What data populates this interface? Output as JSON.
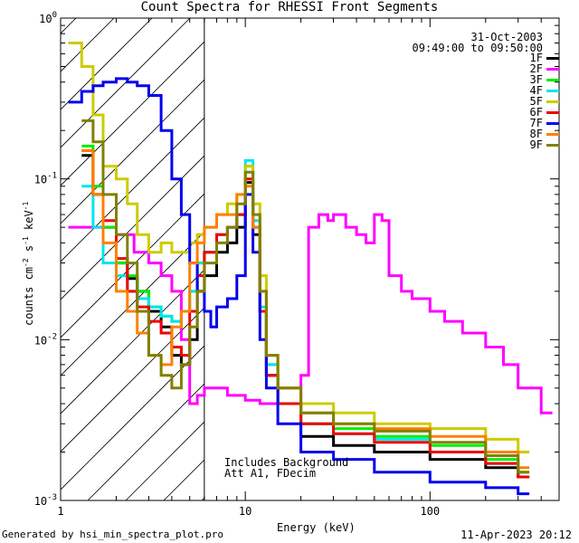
{
  "chart_data": {
    "type": "line",
    "title": "Count Spectra for RHESSI Front Segments",
    "date": "31-Oct-2003",
    "time_range": "09:49:00 to 09:50:00",
    "xlabel": "Energy (keV)",
    "ylabel_parts": {
      "base": "counts cm",
      "exp1": "-2",
      "mid": " s",
      "exp2": "-1",
      "end": " keV",
      "exp3": "-1"
    },
    "xscale": "log",
    "yscale": "log",
    "xlim": [
      1,
      500
    ],
    "ylim": [
      0.001,
      1
    ],
    "x_ticks": [
      {
        "value": 1,
        "label": "1"
      },
      {
        "value": 10,
        "label": "10"
      },
      {
        "value": 100,
        "label": "100"
      }
    ],
    "y_ticks": [
      {
        "value": 0.001,
        "label_base": "10",
        "label_exp": "-3"
      },
      {
        "value": 0.01,
        "label_base": "10",
        "label_exp": "-2"
      },
      {
        "value": 0.1,
        "label_base": "10",
        "label_exp": "-1"
      },
      {
        "value": 1,
        "label_base": "10",
        "label_exp": "0"
      }
    ],
    "hatched_region_max_energy": 6,
    "annotations": [
      "Includes Background",
      "Att A1, FDecim"
    ],
    "legend_position": "top-right",
    "series": [
      {
        "name": "1F",
        "color": "#000000",
        "x": [
          1.3,
          1.5,
          1.7,
          2,
          2.3,
          2.6,
          3,
          3.5,
          4,
          4.5,
          5,
          5.5,
          6,
          7,
          8,
          9,
          10,
          11,
          12,
          13,
          15,
          20,
          30,
          50,
          100,
          200,
          300
        ],
        "y": [
          0.14,
          0.08,
          0.05,
          0.03,
          0.024,
          0.02,
          0.015,
          0.012,
          0.008,
          0.007,
          0.01,
          0.02,
          0.025,
          0.035,
          0.04,
          0.05,
          0.095,
          0.045,
          0.015,
          0.006,
          0.004,
          0.0025,
          0.0022,
          0.002,
          0.0018,
          0.0016,
          0.0014
        ]
      },
      {
        "name": "2F",
        "color": "#ff00ff",
        "x": [
          1.1,
          1.5,
          2,
          2.5,
          3,
          3.5,
          4,
          4.5,
          5,
          5.5,
          6,
          7,
          8,
          9,
          10,
          12,
          15,
          18,
          20,
          22,
          25,
          28,
          30,
          35,
          40,
          45,
          50,
          55,
          60,
          70,
          80,
          100,
          120,
          150,
          200,
          250,
          300,
          400
        ],
        "y": [
          0.05,
          0.05,
          0.045,
          0.035,
          0.03,
          0.025,
          0.02,
          0.01,
          0.004,
          0.0045,
          0.005,
          0.005,
          0.0045,
          0.0045,
          0.0042,
          0.004,
          0.004,
          0.004,
          0.006,
          0.05,
          0.06,
          0.055,
          0.06,
          0.05,
          0.045,
          0.04,
          0.06,
          0.055,
          0.025,
          0.02,
          0.018,
          0.015,
          0.013,
          0.011,
          0.009,
          0.007,
          0.005,
          0.0035
        ]
      },
      {
        "name": "3F",
        "color": "#00ee00",
        "x": [
          1.3,
          1.5,
          1.7,
          2,
          2.3,
          2.6,
          3,
          3.5,
          4,
          4.5,
          5,
          5.5,
          6,
          7,
          8,
          9,
          10,
          11,
          12,
          13,
          15,
          20,
          30,
          50,
          100,
          200,
          300
        ],
        "y": [
          0.16,
          0.09,
          0.05,
          0.03,
          0.025,
          0.02,
          0.016,
          0.014,
          0.013,
          0.015,
          0.02,
          0.03,
          0.035,
          0.045,
          0.05,
          0.06,
          0.12,
          0.05,
          0.015,
          0.007,
          0.004,
          0.003,
          0.0028,
          0.0025,
          0.0022,
          0.0018,
          0.0015
        ]
      },
      {
        "name": "4F",
        "color": "#00e5ee",
        "x": [
          1.3,
          1.5,
          1.7,
          2,
          2.3,
          2.6,
          3,
          3.5,
          4,
          4.5,
          5,
          5.5,
          6,
          7,
          8,
          9,
          10,
          11,
          12,
          13,
          15,
          20,
          30,
          50,
          100,
          200,
          300
        ],
        "y": [
          0.09,
          0.05,
          0.03,
          0.025,
          0.02,
          0.018,
          0.016,
          0.014,
          0.013,
          0.015,
          0.02,
          0.03,
          0.035,
          0.045,
          0.05,
          0.06,
          0.13,
          0.055,
          0.016,
          0.007,
          0.004,
          0.003,
          0.0026,
          0.0024,
          0.002,
          0.0017,
          0.0014
        ]
      },
      {
        "name": "5F",
        "color": "#cccc00",
        "x": [
          1.1,
          1.3,
          1.5,
          1.7,
          2,
          2.3,
          2.6,
          3,
          3.5,
          4,
          4.5,
          5,
          5.5,
          6,
          7,
          8,
          9,
          10,
          11,
          12,
          13,
          15,
          20,
          30,
          50,
          100,
          200,
          300
        ],
        "y": [
          0.7,
          0.5,
          0.25,
          0.12,
          0.1,
          0.07,
          0.045,
          0.035,
          0.04,
          0.035,
          0.035,
          0.04,
          0.045,
          0.05,
          0.06,
          0.07,
          0.08,
          0.12,
          0.07,
          0.025,
          0.008,
          0.005,
          0.004,
          0.0035,
          0.003,
          0.0028,
          0.0024,
          0.002
        ]
      },
      {
        "name": "6F",
        "color": "#ee0000",
        "x": [
          1.3,
          1.5,
          1.7,
          2,
          2.3,
          2.6,
          3,
          3.5,
          4,
          4.5,
          5,
          5.5,
          6,
          7,
          8,
          9,
          10,
          11,
          12,
          13,
          15,
          20,
          30,
          50,
          100,
          200,
          300
        ],
        "y": [
          0.15,
          0.08,
          0.055,
          0.032,
          0.02,
          0.016,
          0.013,
          0.011,
          0.009,
          0.008,
          0.015,
          0.025,
          0.035,
          0.045,
          0.05,
          0.06,
          0.1,
          0.05,
          0.015,
          0.006,
          0.004,
          0.003,
          0.0026,
          0.0023,
          0.002,
          0.0017,
          0.0014
        ]
      },
      {
        "name": "7F",
        "color": "#0000ee",
        "x": [
          1.1,
          1.3,
          1.5,
          1.7,
          2,
          2.3,
          2.6,
          3,
          3.5,
          4,
          4.5,
          5,
          5.5,
          6,
          6.5,
          7,
          8,
          9,
          10,
          11,
          12,
          13,
          15,
          20,
          30,
          50,
          100,
          200,
          300
        ],
        "y": [
          0.3,
          0.35,
          0.38,
          0.4,
          0.42,
          0.4,
          0.38,
          0.33,
          0.2,
          0.1,
          0.06,
          0.03,
          0.02,
          0.015,
          0.012,
          0.016,
          0.018,
          0.025,
          0.08,
          0.035,
          0.01,
          0.005,
          0.003,
          0.002,
          0.0018,
          0.0015,
          0.0013,
          0.0012,
          0.0011
        ]
      },
      {
        "name": "8F",
        "color": "#ff8000",
        "x": [
          1.3,
          1.5,
          1.7,
          2,
          2.3,
          2.6,
          3,
          3.5,
          4,
          4.5,
          5,
          5.5,
          6,
          7,
          8,
          9,
          10,
          11,
          12,
          13,
          15,
          20,
          30,
          50,
          100,
          200,
          300
        ],
        "y": [
          0.15,
          0.08,
          0.04,
          0.02,
          0.015,
          0.011,
          0.008,
          0.007,
          0.012,
          0.015,
          0.03,
          0.04,
          0.05,
          0.06,
          0.06,
          0.08,
          0.09,
          0.05,
          0.02,
          0.008,
          0.005,
          0.0035,
          0.003,
          0.0028,
          0.0025,
          0.002,
          0.0016
        ]
      },
      {
        "name": "9F",
        "color": "#808000",
        "x": [
          1.3,
          1.5,
          1.7,
          2,
          2.3,
          2.6,
          3,
          3.5,
          4,
          4.5,
          5,
          5.5,
          6,
          7,
          8,
          9,
          10,
          11,
          12,
          13,
          15,
          20,
          30,
          50,
          100,
          200,
          300
        ],
        "y": [
          0.23,
          0.17,
          0.08,
          0.045,
          0.03,
          0.015,
          0.008,
          0.006,
          0.005,
          0.007,
          0.012,
          0.02,
          0.03,
          0.04,
          0.05,
          0.07,
          0.11,
          0.06,
          0.02,
          0.008,
          0.005,
          0.0035,
          0.003,
          0.0027,
          0.0023,
          0.0019,
          0.0015
        ]
      }
    ]
  },
  "footer": {
    "generated_by": "Generated by hsi_min_spectra_plot.pro",
    "timestamp": "11-Apr-2023 20:12"
  }
}
